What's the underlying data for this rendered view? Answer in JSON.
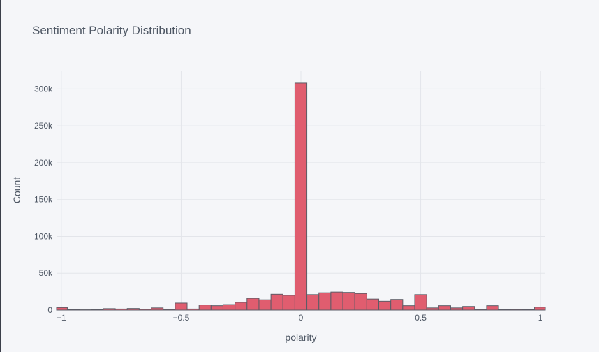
{
  "chart_data": {
    "type": "bar",
    "title": "Sentiment Polarity Distribution",
    "xlabel": "polarity",
    "ylabel": "Count",
    "xlim": [
      -1.02,
      1.02
    ],
    "ylim": [
      0,
      325000
    ],
    "bin_width": 0.05,
    "x_ticks": [
      {
        "value": -1,
        "label": "−1"
      },
      {
        "value": -0.5,
        "label": "−0.5"
      },
      {
        "value": 0,
        "label": "0"
      },
      {
        "value": 0.5,
        "label": "0.5"
      },
      {
        "value": 1,
        "label": "1"
      }
    ],
    "y_ticks": [
      {
        "value": 0,
        "label": "0"
      },
      {
        "value": 50000,
        "label": "50k"
      },
      {
        "value": 100000,
        "label": "100k"
      },
      {
        "value": 150000,
        "label": "150k"
      },
      {
        "value": 200000,
        "label": "200k"
      },
      {
        "value": 250000,
        "label": "250k"
      },
      {
        "value": 300000,
        "label": "300k"
      }
    ],
    "bin_starts": [
      -1.025,
      -0.975,
      -0.925,
      -0.875,
      -0.825,
      -0.775,
      -0.725,
      -0.675,
      -0.625,
      -0.575,
      -0.525,
      -0.475,
      -0.425,
      -0.375,
      -0.325,
      -0.275,
      -0.225,
      -0.175,
      -0.125,
      -0.075,
      -0.025,
      0.025,
      0.075,
      0.125,
      0.175,
      0.225,
      0.275,
      0.325,
      0.375,
      0.425,
      0.475,
      0.525,
      0.575,
      0.625,
      0.675,
      0.725,
      0.775,
      0.825,
      0.875,
      0.925,
      0.975
    ],
    "values": [
      3500,
      500,
      400,
      500,
      2000,
      1500,
      2200,
      1200,
      3000,
      1000,
      9500,
      1500,
      7000,
      6000,
      7500,
      10500,
      16000,
      14000,
      21500,
      20000,
      308000,
      21000,
      23500,
      24500,
      24000,
      22500,
      15000,
      12000,
      14500,
      6000,
      21000,
      3000,
      6000,
      3000,
      5000,
      1000,
      6000,
      500,
      1000,
      500,
      4000
    ],
    "grid": true,
    "colors": {
      "bar_fill": "#e05d6f",
      "bar_stroke": "#5c5c66",
      "grid": "#e3e5ea",
      "zero_line": "#d8dbe2",
      "background": "#f5f6f9"
    }
  }
}
